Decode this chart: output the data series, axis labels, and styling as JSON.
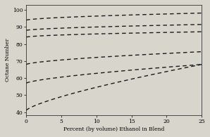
{
  "xlabel": "Percent (by volume) Ethanol in Blend",
  "ylabel": "Octane Number",
  "xlim": [
    0,
    25
  ],
  "ylim": [
    38,
    103
  ],
  "xticks": [
    0,
    5,
    10,
    15,
    20,
    25
  ],
  "yticks": [
    40,
    50,
    60,
    70,
    80,
    90,
    100
  ],
  "background_color": "#d8d5cc",
  "line_color": "#1a1a1a",
  "curves": [
    {
      "y0": 94.0,
      "y1": 98.2,
      "power": 0.6
    },
    {
      "y0": 88.0,
      "y1": 91.5,
      "power": 0.6
    },
    {
      "y0": 84.0,
      "y1": 87.2,
      "power": 0.55
    },
    {
      "y0": 68.0,
      "y1": 75.5,
      "power": 0.65
    },
    {
      "y0": 57.0,
      "y1": 68.0,
      "power": 0.7
    },
    {
      "y0": 41.0,
      "y1": 68.0,
      "power": 0.75
    }
  ],
  "dash_sequence": [
    4,
    3
  ],
  "linewidth": 1.0,
  "tick_fontsize": 5.5,
  "label_fontsize": 5.5,
  "font_family": "DejaVu Serif"
}
